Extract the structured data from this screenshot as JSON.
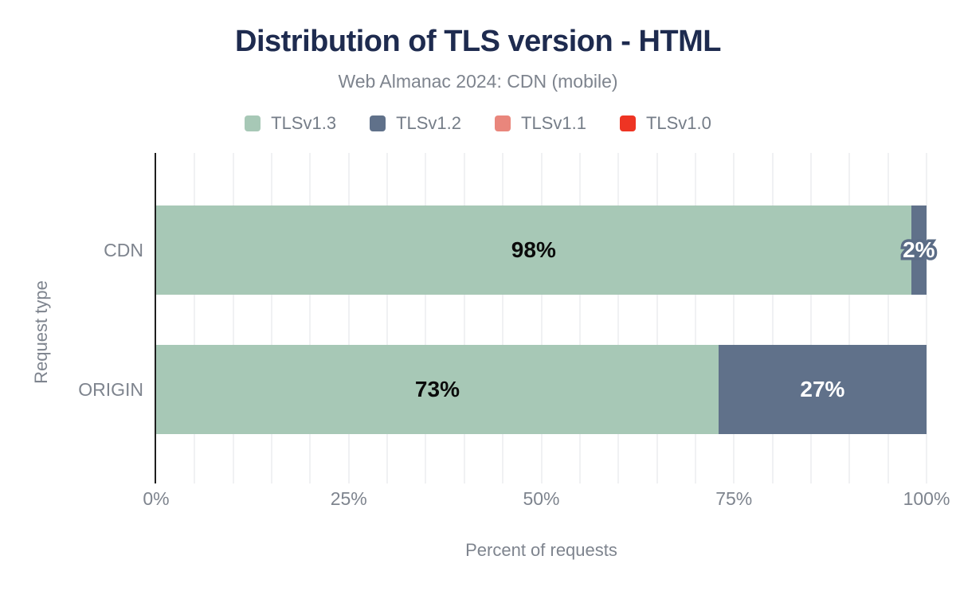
{
  "chart_data": {
    "type": "bar",
    "orientation": "horizontal",
    "stacked": true,
    "title": "Distribution of TLS version - HTML",
    "subtitle": "Web Almanac 2024: CDN (mobile)",
    "xlabel": "Percent of requests",
    "ylabel": "Request type",
    "categories": [
      "CDN",
      "ORIGIN"
    ],
    "series": [
      {
        "name": "TLSv1.3",
        "color": "#a7c8b6",
        "label_color": "#0b0b0b",
        "values": [
          98,
          73
        ]
      },
      {
        "name": "TLSv1.2",
        "color": "#60718a",
        "label_color": "#ffffff",
        "values": [
          2,
          27
        ]
      },
      {
        "name": "TLSv1.1",
        "color": "#e9867c",
        "label_color": "#ffffff",
        "values": [
          0,
          0
        ]
      },
      {
        "name": "TLSv1.0",
        "color": "#ee3423",
        "label_color": "#ffffff",
        "values": [
          0,
          0
        ]
      }
    ],
    "xlim": [
      0,
      100
    ],
    "x_ticks": [
      "0%",
      "25%",
      "50%",
      "75%",
      "100%"
    ],
    "x_tick_values": [
      0,
      25,
      50,
      75,
      100
    ],
    "grid": true,
    "grid_interval_pct": 5,
    "legend_position": "top",
    "bar_label_format": "{value}%",
    "small_segment_threshold_pct": 5,
    "small_segment_outline_color": "#5b6c86"
  },
  "theme": {
    "background": "#ffffff",
    "title_color": "#1e2b4f",
    "muted_text_color": "#7e848e",
    "legend_text_color": "#757d88",
    "axis_line_color": "#1f1f1f",
    "gridline_color": "#f0f1f3"
  }
}
